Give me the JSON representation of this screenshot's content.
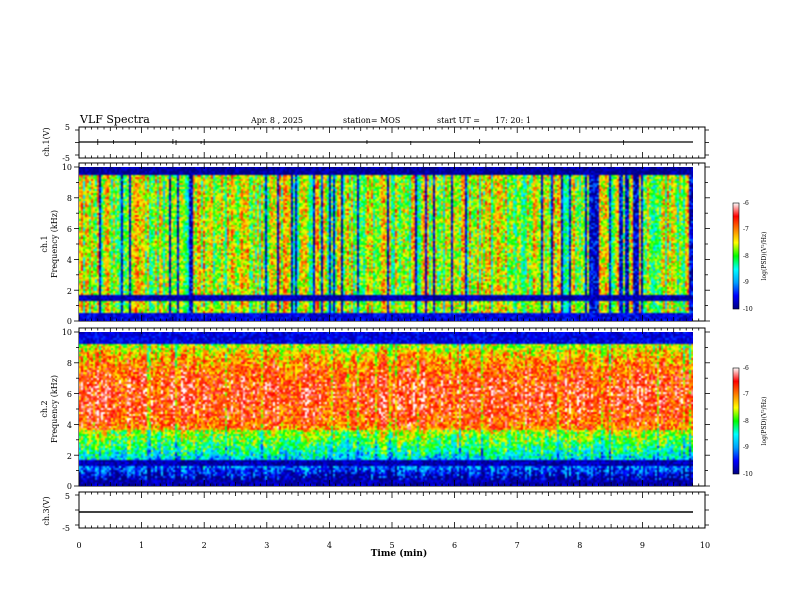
{
  "header": {
    "title": "VLF Spectra",
    "date": "Apr. 8  , 2025",
    "station": "station= MOS",
    "start_label": "start  UT  =",
    "start_time": "17: 20: 1"
  },
  "x_axis": {
    "label": "Time  (min)",
    "range": [
      0,
      10
    ],
    "tick_labels": [
      "0",
      "1",
      "2",
      "3",
      "4",
      "5",
      "6",
      "7",
      "8",
      "9",
      "10"
    ]
  },
  "colorbar": {
    "label": "log(PSD)(V²/Hz)",
    "range": [
      -10,
      -6
    ],
    "tick_labels": [
      "-6",
      "-7",
      "-8",
      "-9",
      "-10"
    ],
    "colormap": [
      "#000080",
      "#0000ff",
      "#00a0ff",
      "#00ffff",
      "#00ff00",
      "#ffff00",
      "#ff8000",
      "#ff0000",
      "#ffffff"
    ]
  },
  "chart_data": [
    {
      "type": "line",
      "panel": "ch1-waveform",
      "ylabel": "ch.1(V)",
      "ylim": [
        -5,
        5
      ],
      "y_tick_labels": [
        "5",
        "-5"
      ],
      "series": [
        {
          "x": [
            0,
            9.8
          ],
          "y": [
            0,
            0
          ]
        }
      ]
    },
    {
      "type": "heatmap",
      "panel": "ch1-spectrogram",
      "ylabel_top": "ch.1",
      "ylabel": "Frequency (kHz)",
      "ylim": [
        0,
        10
      ],
      "y_tick_labels": [
        "0",
        "2",
        "4",
        "6",
        "8",
        "10"
      ],
      "xlim": [
        0,
        9.8
      ],
      "dominant_level": -8.4,
      "bands": [
        {
          "from_khz": 0,
          "to_khz": 0.5,
          "level": -9.6
        },
        {
          "from_khz": 1.3,
          "to_khz": 1.6,
          "level": -9.8
        },
        {
          "from_khz": 9.6,
          "to_khz": 10,
          "level": -9.9
        }
      ]
    },
    {
      "type": "heatmap",
      "panel": "ch2-spectrogram",
      "ylabel_top": "ch.2",
      "ylabel": "Frequency (kHz)",
      "ylim": [
        0,
        10
      ],
      "y_tick_labels": [
        "0",
        "2",
        "4",
        "6",
        "8",
        "10"
      ],
      "xlim": [
        0,
        9.8
      ],
      "dominant_level": -6.9,
      "bands": [
        {
          "from_khz": 0,
          "to_khz": 0.3,
          "level": -9.8
        },
        {
          "from_khz": 1.3,
          "to_khz": 1.6,
          "level": -9.8
        },
        {
          "from_khz": 9.3,
          "to_khz": 10,
          "level": -9.6
        }
      ]
    },
    {
      "type": "line",
      "panel": "ch3-waveform",
      "ylabel": "ch.3(V)",
      "ylim": [
        -5,
        5
      ],
      "y_tick_labels": [
        "5",
        "-5"
      ],
      "series": [
        {
          "x": [
            0,
            9.8
          ],
          "y": [
            0,
            0
          ]
        }
      ]
    }
  ]
}
